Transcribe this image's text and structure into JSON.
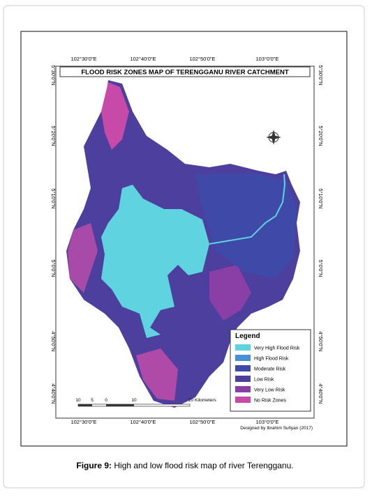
{
  "map": {
    "title": "FLOOD RISK ZONES MAP OF TERENGGANU RIVER CATCHMENT",
    "longitude_labels": [
      "102°30'0\"E",
      "102°40'0\"E",
      "102°50'0\"E",
      "103°0'0\"E"
    ],
    "latitude_labels": [
      "5°30'0\"N",
      "5°20'0\"N",
      "5°10'0\"N",
      "5°0'0\"N",
      "4°50'0\"N",
      "4°40'0\"N"
    ],
    "legend": {
      "title": "Legend",
      "items": [
        {
          "label": "Very High Flood Risk",
          "color": "#5fd3e0"
        },
        {
          "label": "High Flood Risk",
          "color": "#4a8fd6"
        },
        {
          "label": "Moderate Risk",
          "color": "#3f4aa8"
        },
        {
          "label": "Low Risk",
          "color": "#4d3f9e"
        },
        {
          "label": "Very Low Risk",
          "color": "#8a3fa6"
        },
        {
          "label": "No Risk Zones",
          "color": "#c84aa8"
        }
      ]
    },
    "scale_bar": {
      "labels": [
        "10",
        "5",
        "0",
        "10",
        "20 Kilometers"
      ]
    },
    "credit": "Designed by Ibrahim Sufiyan (2017)"
  },
  "caption": {
    "label": "Figure 9:",
    "text": " High and low flood risk map of river Terengganu."
  }
}
